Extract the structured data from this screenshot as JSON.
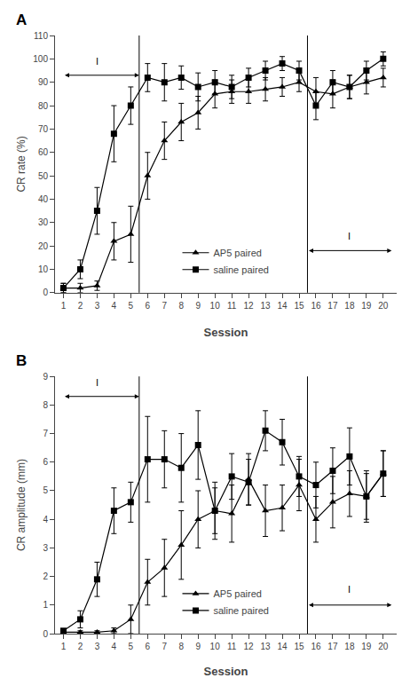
{
  "chart_data": [
    {
      "type": "line",
      "title": "A",
      "xlabel": "Session",
      "ylabel": "CR rate (%)",
      "x": [
        1,
        2,
        3,
        4,
        5,
        6,
        7,
        8,
        9,
        10,
        11,
        12,
        13,
        14,
        15,
        16,
        17,
        18,
        19,
        20
      ],
      "xlim": [
        0.5,
        20.8
      ],
      "xticks": [
        1,
        2,
        3,
        4,
        5,
        6,
        7,
        8,
        9,
        10,
        11,
        12,
        13,
        14,
        15,
        16,
        17,
        18,
        19,
        20
      ],
      "ylim": [
        0,
        110
      ],
      "yticks": [
        0,
        10,
        20,
        30,
        40,
        50,
        60,
        70,
        80,
        90,
        100,
        110
      ],
      "grid": false,
      "legend": "lower center",
      "vlines": [
        5.5,
        15.5
      ],
      "series": [
        {
          "name": "AP5 paired",
          "color": "#000000",
          "marker": "triangle",
          "line_style": "solid",
          "values": [
            2,
            2,
            3,
            22,
            25,
            50,
            65,
            73,
            77,
            85,
            86,
            86,
            87,
            88,
            90,
            86,
            85,
            88,
            90,
            92
          ],
          "errors": [
            2,
            2,
            2,
            8,
            12,
            10,
            8,
            8,
            7,
            6,
            5,
            5,
            5,
            4,
            4,
            6,
            6,
            5,
            5,
            4
          ]
        },
        {
          "name": "saline paired",
          "color": "#000000",
          "marker": "square",
          "line_style": "solid",
          "values": [
            2,
            10,
            35,
            68,
            80,
            92,
            90,
            92,
            88,
            90,
            88,
            92,
            95,
            98,
            95,
            80,
            90,
            88,
            95,
            100
          ],
          "errors": [
            2,
            4,
            10,
            12,
            8,
            6,
            8,
            5,
            6,
            5,
            5,
            4,
            4,
            3,
            4,
            6,
            5,
            5,
            4,
            3
          ]
        }
      ],
      "annotations": [
        {
          "text": "I",
          "x": 3.0,
          "y": 96,
          "arrow": {
            "x1": 1.0,
            "x2": 5.5,
            "y": 93
          }
        },
        {
          "text": "I",
          "x": 18.0,
          "y": 21,
          "arrow": {
            "x1": 15.5,
            "x2": 20.5,
            "y": 18
          }
        }
      ]
    },
    {
      "type": "line",
      "title": "B",
      "xlabel": "Session",
      "ylabel": "CR amplitude (mm)",
      "x": [
        1,
        2,
        3,
        4,
        5,
        6,
        7,
        8,
        9,
        10,
        11,
        12,
        13,
        14,
        15,
        16,
        17,
        18,
        19,
        20
      ],
      "xlim": [
        0.5,
        20.8
      ],
      "xticks": [
        1,
        2,
        3,
        4,
        5,
        6,
        7,
        8,
        9,
        10,
        11,
        12,
        13,
        14,
        15,
        16,
        17,
        18,
        19,
        20
      ],
      "ylim": [
        0,
        9
      ],
      "yticks": [
        0,
        1,
        2,
        3,
        4,
        5,
        6,
        7,
        8,
        9
      ],
      "grid": false,
      "legend": "lower center",
      "vlines": [
        5.5,
        15.5
      ],
      "series": [
        {
          "name": "AP5 paired",
          "color": "#000000",
          "marker": "triangle",
          "line_style": "solid",
          "values": [
            0.05,
            0.05,
            0.05,
            0.1,
            0.5,
            1.8,
            2.3,
            3.1,
            4.0,
            4.3,
            4.2,
            5.4,
            4.3,
            4.4,
            5.2,
            4.0,
            4.6,
            4.9,
            4.8,
            5.6
          ],
          "errors": [
            0.05,
            0.05,
            0.05,
            0.1,
            0.5,
            0.8,
            1.0,
            1.2,
            1.0,
            0.8,
            1.0,
            0.9,
            0.9,
            0.8,
            0.9,
            0.8,
            0.9,
            0.8,
            0.9,
            0.8
          ]
        },
        {
          "name": "saline paired",
          "color": "#000000",
          "marker": "square",
          "line_style": "solid",
          "values": [
            0.1,
            0.5,
            1.9,
            4.3,
            4.6,
            6.1,
            6.1,
            5.8,
            6.6,
            4.3,
            5.5,
            5.3,
            7.1,
            6.7,
            5.5,
            5.2,
            5.7,
            6.2,
            4.8,
            5.6
          ],
          "errors": [
            0.05,
            0.3,
            0.6,
            0.8,
            0.7,
            1.5,
            1.0,
            1.2,
            1.2,
            1.0,
            0.8,
            0.8,
            0.7,
            0.8,
            0.7,
            0.8,
            0.8,
            1.0,
            0.8,
            0.8
          ]
        }
      ],
      "annotations": [
        {
          "text": "I",
          "x": 3.0,
          "y": 8.55,
          "arrow": {
            "x1": 1.0,
            "x2": 5.5,
            "y": 8.3
          }
        },
        {
          "text": "I",
          "x": 18.0,
          "y": 1.3,
          "arrow": {
            "x1": 15.5,
            "x2": 20.5,
            "y": 1.0
          }
        }
      ]
    }
  ]
}
